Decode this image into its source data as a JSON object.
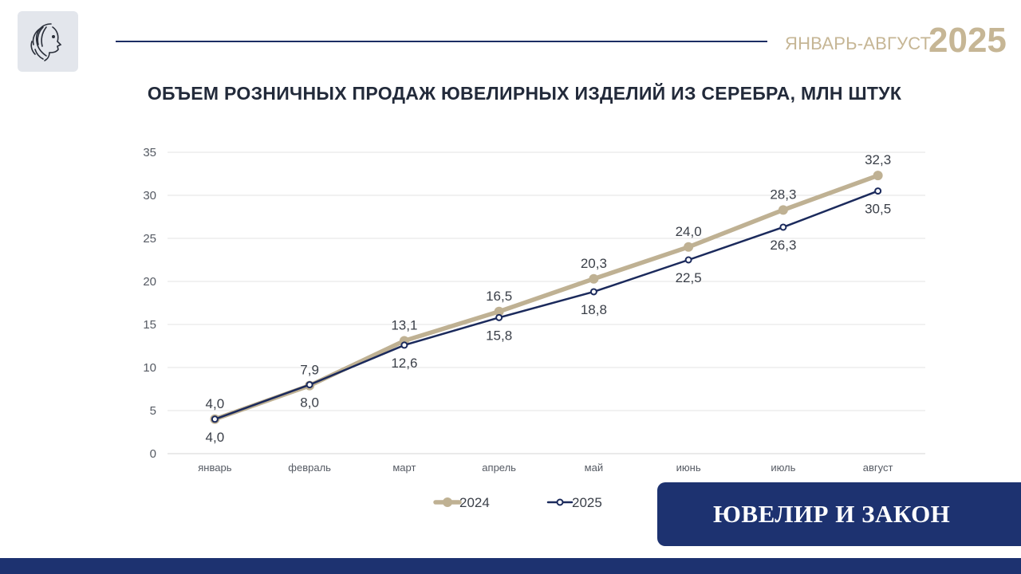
{
  "header": {
    "period_label": "ЯНВАРЬ-АВГУСТ",
    "year_label": "2025"
  },
  "brand": {
    "logo_icon": "profile-logo-icon",
    "name": "ЮВЕЛИР И ЗАКОН"
  },
  "colors": {
    "series_2024": "#bfb193",
    "series_2025": "#1b2a5c",
    "brand_blue": "#1d3270",
    "accent_gold": "#c6b695"
  },
  "chart_data": {
    "type": "line",
    "title": "ОБЪЕМ РОЗНИЧНЫХ ПРОДАЖ ЮВЕЛИРНЫХ ИЗДЕЛИЙ ИЗ СЕРЕБРА, МЛН ШТУК",
    "categories": [
      "январь",
      "февраль",
      "март",
      "апрель",
      "май",
      "июнь",
      "июль",
      "август"
    ],
    "ylim": [
      0,
      35
    ],
    "yticks": [
      0,
      5,
      10,
      15,
      20,
      25,
      30,
      35
    ],
    "grid": true,
    "legend_position": "bottom",
    "series": [
      {
        "name": "2024",
        "values": [
          4.0,
          7.9,
          13.1,
          16.5,
          20.3,
          24.0,
          28.3,
          32.3
        ],
        "labels": [
          "4,0",
          "7,9",
          "13,1",
          "16,5",
          "20,3",
          "24,0",
          "28,3",
          "32,3"
        ]
      },
      {
        "name": "2025",
        "values": [
          4.0,
          8.0,
          12.6,
          15.8,
          18.8,
          22.5,
          26.3,
          30.5
        ],
        "labels": [
          "4,0",
          "8,0",
          "12,6",
          "15,8",
          "18,8",
          "22,5",
          "26,3",
          "30,5"
        ]
      }
    ]
  }
}
